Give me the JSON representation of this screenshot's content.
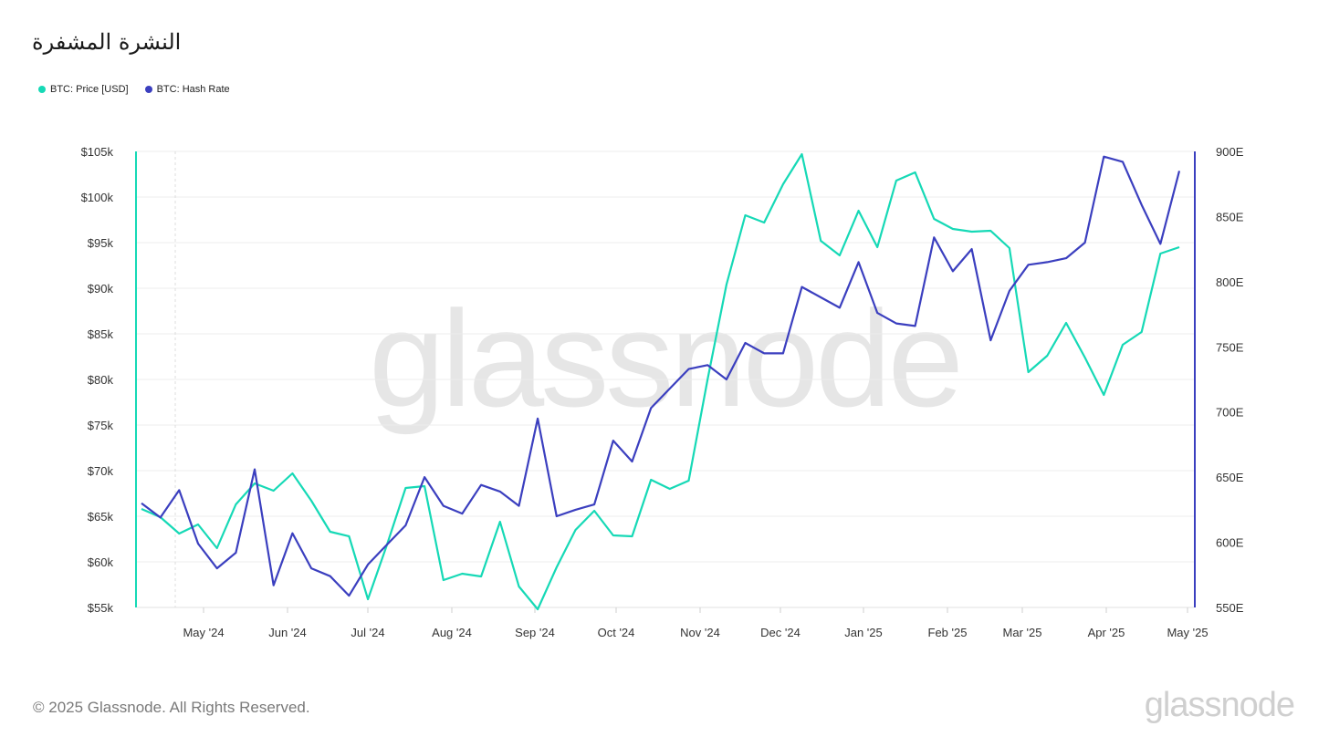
{
  "title": "النشرة المشفرة",
  "footer": {
    "copyright": "© 2025 Glassnode. All Rights Reserved.",
    "logo": "glassnode"
  },
  "watermark": "glassnode",
  "colors": {
    "price": "#16d9b6",
    "hash": "#3b3fbf"
  },
  "chart_data": {
    "type": "line",
    "x_ticks": [
      "May '24",
      "Jun '24",
      "Jul '24",
      "Aug '24",
      "Sep '24",
      "Oct '24",
      "Nov '24",
      "Dec '24",
      "Jan '25",
      "Feb '25",
      "Mar '25",
      "Apr '25",
      "May '25"
    ],
    "y_left": {
      "ticks": [
        "$55k",
        "$60k",
        "$65k",
        "$70k",
        "$75k",
        "$80k",
        "$85k",
        "$90k",
        "$95k",
        "$100k",
        "$105k"
      ],
      "range": [
        55000,
        105000
      ]
    },
    "y_right": {
      "ticks": [
        "550E",
        "600E",
        "650E",
        "700E",
        "750E",
        "800E",
        "850E",
        "900E"
      ],
      "range": [
        550,
        900
      ]
    },
    "legend_position": "top-left",
    "series": [
      {
        "name": "BTC: Price [USD]",
        "axis": "left",
        "values": [
          65800,
          64900,
          63100,
          64100,
          61500,
          66300,
          68600,
          67800,
          69700,
          66700,
          63300,
          62800,
          55900,
          61800,
          68100,
          68300,
          58000,
          58700,
          58400,
          64400,
          57300,
          54800,
          59400,
          63500,
          65600,
          62900,
          62800,
          69000,
          68000,
          68900,
          80000,
          90400,
          98000,
          97200,
          101400,
          104700,
          95200,
          93600,
          98500,
          94500,
          101800,
          102700,
          97600,
          96500,
          96200,
          96300,
          94400,
          80800,
          82600,
          86200,
          82400,
          78300,
          83800,
          85200,
          93800,
          94500
        ]
      },
      {
        "name": "BTC: Hash Rate",
        "axis": "right",
        "values": [
          630,
          619,
          640,
          599,
          580,
          592,
          656,
          567,
          607,
          580,
          574,
          559,
          583,
          598,
          613,
          650,
          628,
          622,
          644,
          639,
          628,
          695,
          620,
          625,
          629,
          678,
          662,
          703,
          718,
          733,
          736,
          725,
          753,
          745,
          745,
          796,
          788,
          780,
          815,
          776,
          768,
          766,
          834,
          808,
          825,
          755,
          793,
          813,
          815,
          818,
          830,
          896,
          892,
          859,
          829,
          885
        ]
      }
    ]
  }
}
